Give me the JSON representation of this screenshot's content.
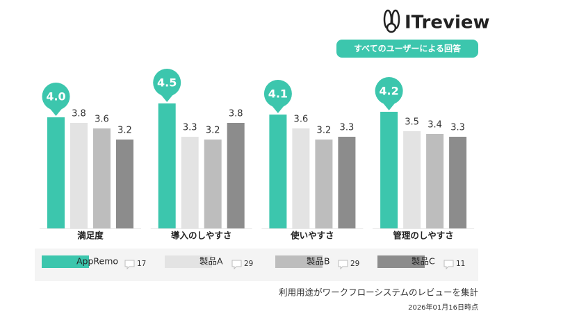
{
  "brand": "ITreview",
  "badge": "すべてのユーザーによる回答",
  "chart_data": {
    "type": "bar",
    "categories": [
      "満足度",
      "導入のしやすさ",
      "使いやすさ",
      "管理のしやすさ"
    ],
    "series": [
      {
        "name": "AppRemo",
        "color": "#3cc6ad",
        "reviews": 17,
        "values": [
          4.0,
          4.5,
          4.1,
          4.2
        ],
        "value_labels": [
          "4.0",
          "4.5",
          "4.1",
          "4.2"
        ]
      },
      {
        "name": "製品A",
        "color": "#e3e3e3",
        "reviews": 29,
        "values": [
          3.8,
          3.3,
          3.6,
          3.5
        ],
        "value_labels": [
          "3.8",
          "3.3",
          "3.6",
          "3.5"
        ]
      },
      {
        "name": "製品B",
        "color": "#bdbdbd",
        "reviews": 29,
        "values": [
          3.6,
          3.2,
          3.2,
          3.4
        ],
        "value_labels": [
          "3.6",
          "3.2",
          "3.2",
          "3.4"
        ]
      },
      {
        "name": "製品C",
        "color": "#8c8c8c",
        "reviews": 11,
        "values": [
          3.2,
          3.8,
          3.3,
          3.3
        ],
        "value_labels": [
          "3.2",
          "3.8",
          "3.3",
          "3.3"
        ]
      }
    ]
  },
  "note": "利用用途がワークフローシステムのレビューを集計",
  "date": "2026年01月16日時点"
}
